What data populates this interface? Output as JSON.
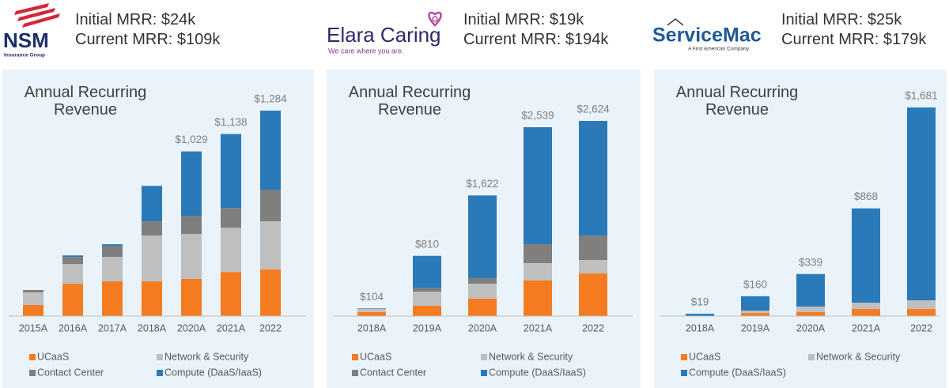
{
  "headers": [
    {
      "logo": "NSM",
      "tagline": "Insurance Group",
      "initial": "Initial MRR: $24k",
      "current": "Current MRR: $109k"
    },
    {
      "logo": "Elara Caring",
      "tagline": "We care where you are.",
      "initial": "Initial MRR: $19k",
      "current": "Current MRR: $194k"
    },
    {
      "logo": "ServiceMac",
      "tagline": "A First American Company",
      "initial": "Initial MRR: $25k",
      "current": "Current MRR: $179k"
    }
  ],
  "chart_data": [
    {
      "type": "stacked_bar",
      "title": "Annual Recurring Revenue",
      "categories": [
        "2015A",
        "2016A",
        "2017A",
        "2018A",
        "2020A",
        "2021A",
        "2022"
      ],
      "series": [
        {
          "name": "UCaaS",
          "color": "#f47b20",
          "values": [
            69,
            202,
            217,
            217,
            232,
            276,
            291
          ]
        },
        {
          "name": "Network & Security",
          "color": "#bfbfbf",
          "values": [
            79,
            123,
            153,
            286,
            281,
            276,
            301
          ]
        },
        {
          "name": "Contact Center",
          "color": "#7f7f7f",
          "values": [
            15,
            44,
            69,
            89,
            114,
            123,
            198
          ]
        },
        {
          "name": "Compute (DaaS/IaaS)",
          "color": "#2a7ab9",
          "values": [
            0,
            10,
            10,
            222,
            402,
            463,
            494
          ]
        }
      ],
      "totals": [
        null,
        null,
        null,
        null,
        1029,
        1138,
        1284
      ],
      "total_labels": [
        null,
        null,
        null,
        null,
        "$1,029",
        "$1,138",
        "$1,284"
      ]
    },
    {
      "type": "stacked_bar",
      "title": "Annual Recurring Revenue",
      "categories": [
        "2018A",
        "2019A",
        "2020A",
        "2021A",
        "2022"
      ],
      "series": [
        {
          "name": "UCaaS",
          "color": "#f47b20",
          "values": [
            55,
            138,
            234,
            478,
            573
          ]
        },
        {
          "name": "Network & Security",
          "color": "#bfbfbf",
          "values": [
            39,
            191,
            202,
            234,
            181
          ]
        },
        {
          "name": "Contact Center",
          "color": "#7f7f7f",
          "values": [
            10,
            53,
            74,
            255,
            329
          ]
        },
        {
          "name": "Compute (DaaS/IaaS)",
          "color": "#2a7ab9",
          "values": [
            0,
            428,
            1112,
            1572,
            1541
          ]
        }
      ],
      "totals": [
        104,
        810,
        1622,
        2539,
        2624
      ],
      "total_labels": [
        "$104",
        "$810",
        "$1,622",
        "$2,539",
        "$2,624"
      ]
    },
    {
      "type": "stacked_bar",
      "title": "Annual Recurring Revenue",
      "categories": [
        "2018A",
        "2019A",
        "2020A",
        "2021A",
        "2022"
      ],
      "series": [
        {
          "name": "UCaaS",
          "color": "#f47b20",
          "values": [
            0,
            25,
            32,
            57,
            57
          ]
        },
        {
          "name": "Network & Security",
          "color": "#bfbfbf",
          "values": [
            0,
            19,
            45,
            51,
            70
          ]
        },
        {
          "name": "Compute (DaaS/IaaS)",
          "color": "#2a7ab9",
          "values": [
            19,
            116,
            262,
            760,
            1554
          ]
        }
      ],
      "totals": [
        19,
        160,
        339,
        868,
        1681
      ],
      "total_labels": [
        "$19",
        "$160",
        "$339",
        "$868",
        "$1,681"
      ]
    }
  ]
}
